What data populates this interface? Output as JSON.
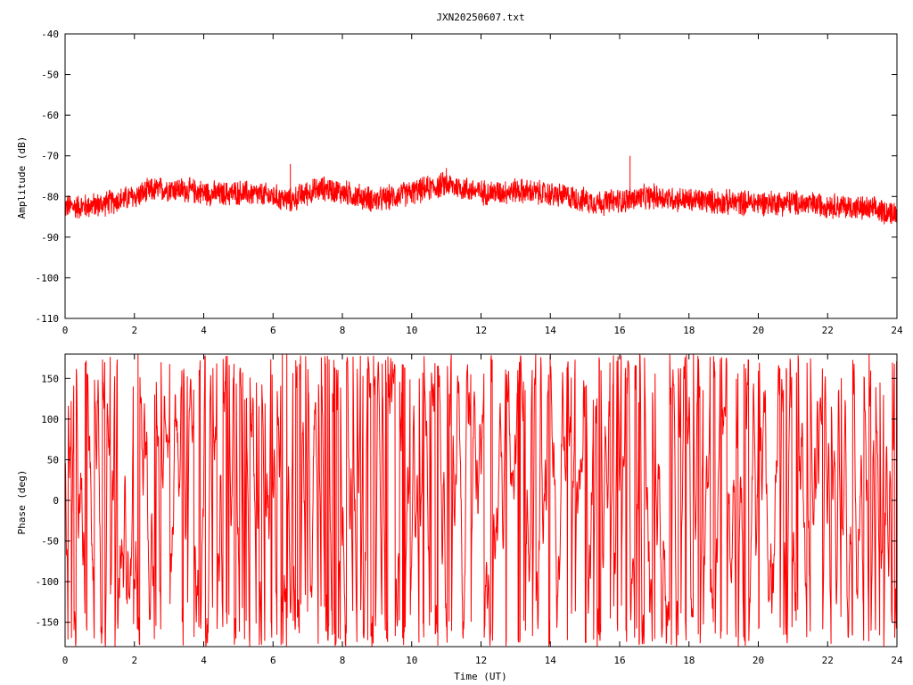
{
  "title": "JXN20250607.txt",
  "colors": {
    "series": "#ff0000",
    "axis": "#000000",
    "background": "#ffffff"
  },
  "chart_data": [
    {
      "type": "line",
      "title": "JXN20250607.txt",
      "xlabel": "",
      "ylabel": "Amplitude (dB)",
      "xlim": [
        0,
        24
      ],
      "ylim": [
        -110,
        -40
      ],
      "x_ticks": [
        0,
        2,
        4,
        6,
        8,
        10,
        12,
        14,
        16,
        18,
        20,
        22,
        24
      ],
      "y_ticks": [
        -110,
        -100,
        -90,
        -80,
        -70,
        -60,
        -50,
        -40
      ],
      "grid": false,
      "series": [
        {
          "color": "#ff0000",
          "envelope_mean": {
            "x": [
              0,
              0.5,
              1,
              1.5,
              2,
              2.5,
              3,
              3.5,
              4,
              4.5,
              5,
              5.5,
              6,
              6.5,
              7,
              7.5,
              8,
              8.5,
              9,
              9.5,
              10,
              10.5,
              11,
              11.5,
              12,
              12.5,
              13,
              13.5,
              14,
              14.5,
              15,
              15.5,
              16,
              16.5,
              17,
              17.5,
              18,
              18.5,
              19,
              19.5,
              20,
              20.5,
              21,
              21.5,
              22,
              22.5,
              23,
              23.5,
              24
            ],
            "y": [
              -82.5,
              -82.5,
              -82,
              -81,
              -80,
              -78.5,
              -78,
              -78.5,
              -79,
              -79.5,
              -79,
              -79.5,
              -80,
              -81,
              -79,
              -78,
              -79,
              -80,
              -81,
              -80,
              -79,
              -78,
              -77,
              -78,
              -79,
              -79,
              -78.5,
              -79,
              -79.5,
              -80,
              -81,
              -81.5,
              -81,
              -80.5,
              -80,
              -80.5,
              -81,
              -81,
              -81.5,
              -81.5,
              -81.5,
              -81.5,
              -81.5,
              -82,
              -82,
              -82.5,
              -83,
              -83.5,
              -84
            ]
          },
          "envelope_halfwidth_db": 3,
          "outlier_spikes": [
            {
              "x": 6.5,
              "y": -72
            },
            {
              "x": 11,
              "y": -73
            },
            {
              "x": 16.3,
              "y": -70
            }
          ]
        }
      ]
    },
    {
      "type": "line",
      "title": "",
      "xlabel": "Time (UT)",
      "ylabel": "Phase (deg)",
      "xlim": [
        0,
        24
      ],
      "ylim": [
        -180,
        180
      ],
      "x_ticks": [
        0,
        2,
        4,
        6,
        8,
        10,
        12,
        14,
        16,
        18,
        20,
        22,
        24
      ],
      "y_ticks": [
        -150,
        -100,
        -50,
        0,
        50,
        100,
        150
      ],
      "grid": false,
      "series": [
        {
          "color": "#ff0000",
          "note_values": "phase wraps between -180 and 180 deg across the whole day"
        }
      ]
    }
  ]
}
